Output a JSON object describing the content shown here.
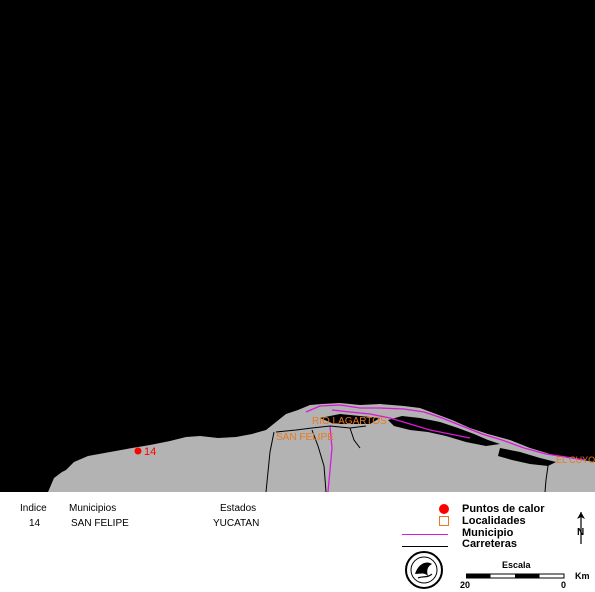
{
  "map": {
    "hotspot_label": "14",
    "places": [
      {
        "name": "RIO LAGARTOS"
      },
      {
        "name": "SAN FELIPE"
      },
      {
        "name": "EL CUYO"
      }
    ]
  },
  "table": {
    "headers": {
      "indice": "Indice",
      "municipios": "Municipios",
      "estados": "Estados"
    },
    "rows": [
      {
        "indice": "14",
        "municipio": "SAN  FELIPE",
        "estado": "YUCATAN"
      }
    ]
  },
  "legend": {
    "items": [
      {
        "label": "Puntos de calor",
        "icon": "red-dot-icon",
        "color": "#ff0000"
      },
      {
        "label": "Localidades",
        "icon": "orange-square-icon",
        "color": "#e87a1e"
      },
      {
        "label": "Municipio",
        "icon": "magenta-line-icon",
        "color": "#d81ad8"
      },
      {
        "label": "Carreteras",
        "icon": "black-line-icon",
        "color": "#000000"
      }
    ]
  },
  "scale": {
    "title": "Escala",
    "left": "20",
    "right": "0",
    "unit": "Km"
  },
  "north_label": "N",
  "colors": {
    "sea": "#000000",
    "land": "#b3b3b3",
    "hotspot": "#ff0000",
    "town_label": "#e87a1e",
    "municipio": "#d81ad8"
  }
}
